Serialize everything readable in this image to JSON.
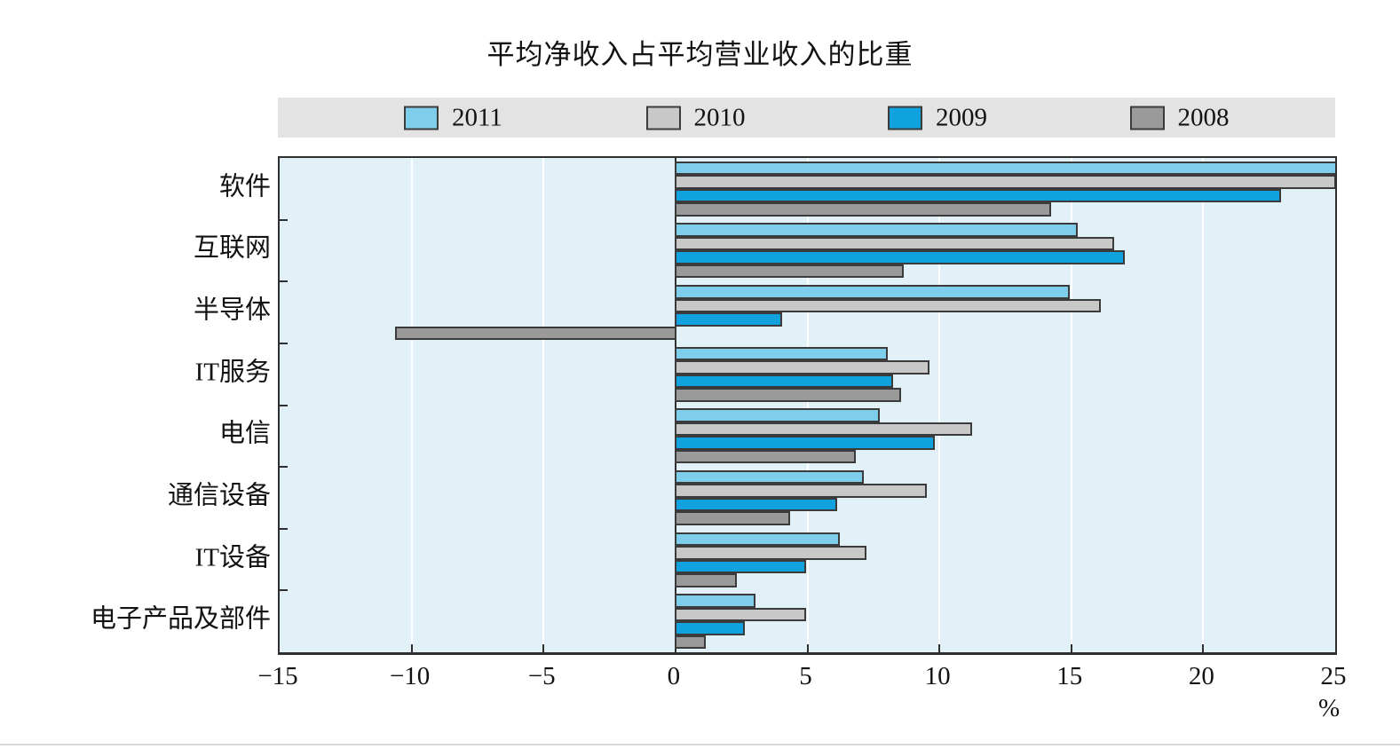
{
  "chart_data": {
    "type": "bar",
    "orientation": "horizontal",
    "title": "平均净收入占平均营业收入的比重",
    "categories": [
      "软件",
      "互联网",
      "半导体",
      "IT服务",
      "电信",
      "通信设备",
      "IT设备",
      "电子产品及部件"
    ],
    "series": [
      {
        "name": "2011",
        "color": "#7ecdea",
        "values": [
          25.3,
          15.2,
          14.9,
          8.0,
          7.7,
          7.1,
          6.2,
          3.0
        ]
      },
      {
        "name": "2010",
        "color": "#c8c8c8",
        "values": [
          25.0,
          16.6,
          16.1,
          9.6,
          11.2,
          9.5,
          7.2,
          4.9
        ]
      },
      {
        "name": "2009",
        "color": "#0fa2de",
        "values": [
          22.9,
          17.0,
          4.0,
          8.2,
          9.8,
          6.1,
          4.9,
          2.6
        ]
      },
      {
        "name": "2008",
        "color": "#9a9a9a",
        "values": [
          14.2,
          8.6,
          -10.6,
          8.5,
          6.8,
          4.3,
          2.3,
          1.1
        ]
      }
    ],
    "xlim": [
      -15,
      25
    ],
    "xticks": [
      -15,
      -10,
      -5,
      0,
      5,
      10,
      15,
      20,
      25
    ],
    "xtick_labels": [
      "−15",
      "−10",
      "−5",
      "0",
      "5",
      "10",
      "15",
      "20",
      "25"
    ],
    "x_unit": "%",
    "legend_position": "top",
    "legend_background": "#e3e3e3",
    "plot_background": "#e2f1f8",
    "grid": true
  }
}
